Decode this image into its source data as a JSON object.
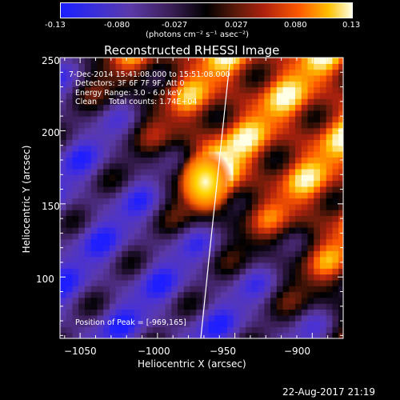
{
  "colorbar": {
    "ticks": [
      "-0.13",
      "-0.080",
      "-0.027",
      "0.027",
      "0.080",
      "0.13"
    ],
    "units": "(photons cm⁻² s⁻¹ asec⁻²)"
  },
  "info_lines": [
    "7-Dec-2014 15:41:08.000 to 15:51:08.000",
    "Detectors: 3F 6F 7F 9F, Att 0",
    "Energy Range: 3.0 - 6.0 keV",
    "Clean     Total counts: 1.74E+04"
  ],
  "peak_label": "Position of Peak = [-969,165]",
  "timestamp": "22-Aug-2017 21:19",
  "chart_data": {
    "type": "heatmap",
    "title": "Reconstructed RHESSI Image",
    "xlabel": "Heliocentric X (arcsec)",
    "ylabel": "Heliocentric Y (arcsec)",
    "xlim": [
      -1063,
      -880
    ],
    "ylim": [
      58,
      250
    ],
    "x_ticks": [
      -1050,
      -1000,
      -950,
      -900
    ],
    "x_tick_labels": [
      "−1050",
      "−1000",
      "−950",
      "−900"
    ],
    "y_ticks": [
      100,
      150,
      200,
      250
    ],
    "y_tick_labels": [
      "100",
      "150",
      "200",
      "250"
    ],
    "colorbar_range": [
      -0.13,
      0.13
    ],
    "peak": {
      "x": -969,
      "y": 165
    },
    "limb_curve": [
      [
        -972,
        58
      ],
      [
        -966,
        120
      ],
      [
        -959,
        190
      ],
      [
        -953,
        250
      ]
    ],
    "colors": {
      "negative": "#2b33d6",
      "mid": "#000000",
      "positive": "#ffffff",
      "limb": "#ffffff"
    }
  }
}
